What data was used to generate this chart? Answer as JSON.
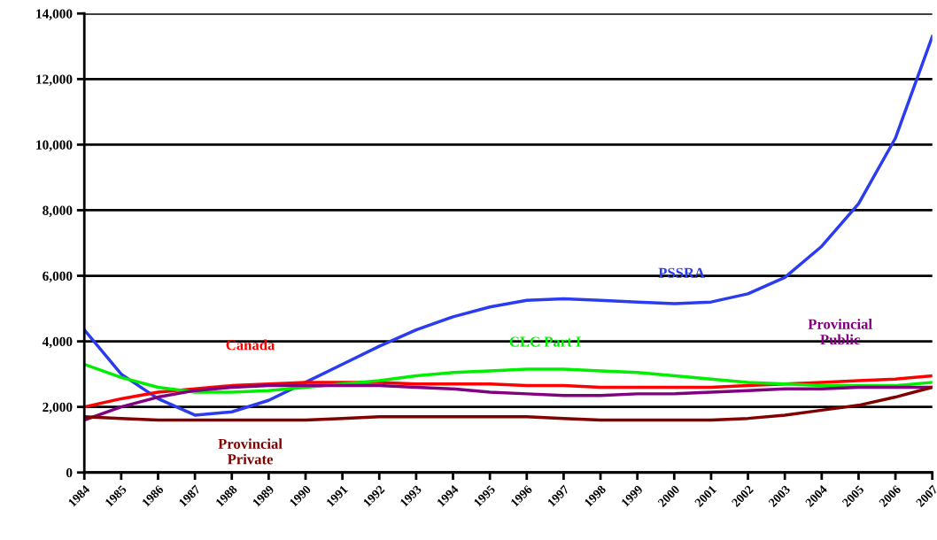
{
  "chart_data": {
    "type": "line",
    "categories": [
      "1984",
      "1985",
      "1986",
      "1987",
      "1988",
      "1989",
      "1990",
      "1991",
      "1992",
      "1993",
      "1994",
      "1995",
      "1996",
      "1997",
      "1998",
      "1999",
      "2000",
      "2001",
      "2002",
      "2003",
      "2004",
      "2005",
      "2006",
      "2007"
    ],
    "series": [
      {
        "name": "PSSRA",
        "color": "#2b3cf0",
        "values": [
          4350,
          3000,
          2250,
          1750,
          1850,
          2200,
          2750,
          3300,
          3850,
          4350,
          4750,
          5050,
          5250,
          5300,
          5250,
          5200,
          5150,
          5200,
          5450,
          5950,
          6900,
          8200,
          10200,
          13300
        ]
      },
      {
        "name": "Canada",
        "color": "#ff0000",
        "values": [
          2000,
          2250,
          2450,
          2550,
          2650,
          2700,
          2750,
          2750,
          2750,
          2700,
          2700,
          2700,
          2650,
          2650,
          2600,
          2600,
          2600,
          2600,
          2650,
          2700,
          2750,
          2800,
          2850,
          2950
        ]
      },
      {
        "name": "CLC Part I",
        "color": "#00ee00",
        "values": [
          3300,
          2900,
          2600,
          2450,
          2450,
          2500,
          2600,
          2700,
          2800,
          2950,
          3050,
          3100,
          3150,
          3150,
          3100,
          3050,
          2950,
          2850,
          2750,
          2700,
          2650,
          2650,
          2650,
          2750
        ]
      },
      {
        "name": "Provincial\nPublic",
        "color": "#800080",
        "values": [
          1600,
          2000,
          2300,
          2500,
          2600,
          2650,
          2650,
          2650,
          2650,
          2600,
          2550,
          2450,
          2400,
          2350,
          2350,
          2400,
          2400,
          2450,
          2500,
          2550,
          2550,
          2600,
          2600,
          2600
        ]
      },
      {
        "name": "Provincial\nPrivate",
        "color": "#800000",
        "values": [
          1700,
          1650,
          1600,
          1600,
          1600,
          1600,
          1600,
          1650,
          1700,
          1700,
          1700,
          1700,
          1700,
          1650,
          1600,
          1600,
          1600,
          1600,
          1650,
          1750,
          1900,
          2050,
          2300,
          2600
        ]
      }
    ],
    "ylim": [
      0,
      14000
    ],
    "yticks": [
      {
        "value": 0,
        "label": "0"
      },
      {
        "value": 2000,
        "label": "2,000"
      },
      {
        "value": 4000,
        "label": "4,000"
      },
      {
        "value": 6000,
        "label": "6,000"
      },
      {
        "value": 8000,
        "label": "8,000"
      },
      {
        "value": 10000,
        "label": "10,000"
      },
      {
        "value": 12000,
        "label": "12,000"
      },
      {
        "value": 14000,
        "label": "14,000"
      }
    ],
    "grid": "y",
    "legend": false,
    "marker": "none",
    "line_style": "solid"
  }
}
